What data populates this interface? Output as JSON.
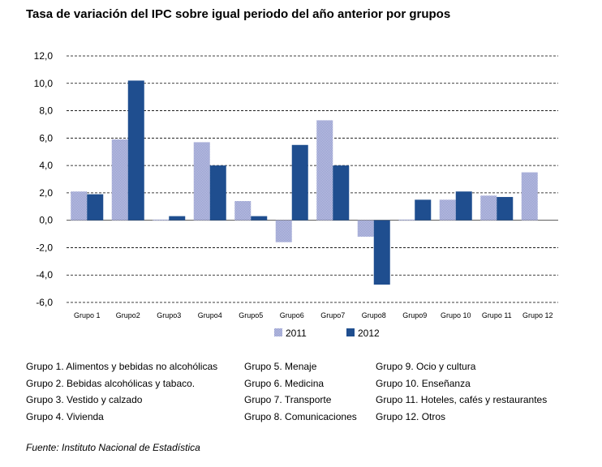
{
  "title": "Tasa de variación del IPC sobre igual periodo del año anterior por grupos",
  "chart_data": {
    "type": "bar",
    "categories": [
      "Grupo 1",
      "Grupo2",
      "Grupo3",
      "Grupo4",
      "Grupo5",
      "Grupo6",
      "Grupo7",
      "Grupo8",
      "Grupo9",
      "Grupo 10",
      "Grupo 11",
      "Grupo 12"
    ],
    "series": [
      {
        "name": "2011",
        "color": "#a9b0da",
        "values": [
          2.1,
          5.9,
          0.05,
          5.7,
          1.4,
          -1.6,
          7.3,
          -1.2,
          0.05,
          1.5,
          1.8,
          3.5
        ]
      },
      {
        "name": "2012",
        "color": "#1f4e8f",
        "values": [
          1.9,
          10.2,
          0.3,
          4.0,
          0.3,
          5.5,
          4.0,
          -4.7,
          1.5,
          2.1,
          1.7,
          null
        ]
      }
    ],
    "ylim": [
      -6.0,
      12.0
    ],
    "yticks": [
      "12,0",
      "10,0",
      "8,0",
      "6,0",
      "4,0",
      "2,0",
      "0,0",
      "-2,0",
      "-4,0",
      "-6,0"
    ],
    "grid": "dashed-horizontal",
    "legend": "bottom-center"
  },
  "group_key": {
    "col1": [
      "Grupo 1. Alimentos y bebidas no alcohólicas",
      "Grupo 2. Bebidas alcohólicas y  tabaco.",
      "Grupo 3. Vestido y calzado",
      "Grupo 4. Vivienda"
    ],
    "col2": [
      "Grupo 5. Menaje",
      "Grupo 6. Medicina",
      "Grupo 7. Transporte",
      "Grupo 8. Comunicaciones"
    ],
    "col3": [
      "Grupo 9. Ocio y cultura",
      "Grupo 10. Enseñanza",
      "Grupo 11. Hoteles, cafés y restaurantes",
      "Grupo 12. Otros"
    ]
  },
  "source": "Fuente: Instituto Nacional de Estadística"
}
